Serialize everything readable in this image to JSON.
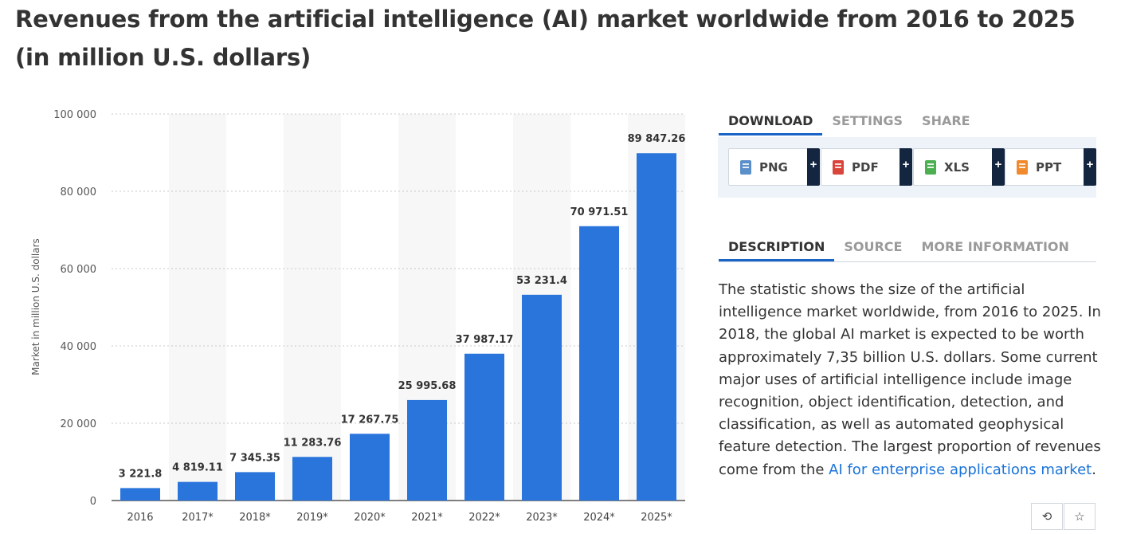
{
  "page": {
    "title": "Revenues from the artificial intelligence (AI) market worldwide from 2016 to 2025 (in million U.S. dollars)"
  },
  "chart_data": {
    "type": "bar",
    "title": "Revenues from the artificial intelligence (AI) market worldwide from 2016 to 2025 (in million U.S. dollars)",
    "xlabel": "",
    "ylabel": "Market in million U.S. dollars",
    "categories": [
      "2016",
      "2017*",
      "2018*",
      "2019*",
      "2020*",
      "2021*",
      "2022*",
      "2023*",
      "2024*",
      "2025*"
    ],
    "values": [
      3221.8,
      4819.11,
      7345.35,
      11283.76,
      17267.75,
      25995.68,
      37987.17,
      53231.4,
      70971.51,
      89847.26
    ],
    "value_labels": [
      "3 221.8",
      "4 819.11",
      "7 345.35",
      "11 283.76",
      "17 267.75",
      "25 995.68",
      "37 987.17",
      "53 231.4",
      "70 971.51",
      "89 847.26"
    ],
    "ylim": [
      0,
      100000
    ],
    "yticks": [
      0,
      20000,
      40000,
      60000,
      80000,
      100000
    ],
    "ytick_labels": [
      "0",
      "20 000",
      "40 000",
      "60 000",
      "80 000",
      "100 000"
    ],
    "grid": true,
    "legend": "none",
    "bar_color": "#2a75dc",
    "band_color": "#f7f7f7"
  },
  "download": {
    "tabs": [
      "DOWNLOAD",
      "SETTINGS",
      "SHARE"
    ],
    "active_tab": 0,
    "buttons": [
      {
        "label": "PNG",
        "icon": "png-file-icon",
        "color": "#5b8fc9"
      },
      {
        "label": "PDF",
        "icon": "pdf-file-icon",
        "color": "#d9443b"
      },
      {
        "label": "XLS",
        "icon": "xls-file-icon",
        "color": "#4caf50"
      },
      {
        "label": "PPT",
        "icon": "ppt-file-icon",
        "color": "#f08a2c"
      }
    ],
    "plus": "+"
  },
  "info": {
    "tabs": [
      "DESCRIPTION",
      "SOURCE",
      "MORE INFORMATION"
    ],
    "active_tab": 0,
    "description": "The statistic shows the size of the artificial intelligence market worldwide, from 2016 to 2025. In 2018, the global AI market is expected to be worth approximately 7,35 billion U.S. dollars. Some current major uses of artificial intelligence include image recognition, object identification, detection, and classification, as well as automated geophysical feature detection. The largest proportion of revenues come from the ",
    "link_text": "AI for enterprise applications market",
    "end": "."
  },
  "actions": {
    "history_icon": "history-icon",
    "favorite_icon": "star-icon",
    "history_glyph": "⟲",
    "favorite_glyph": "☆"
  },
  "colors": {
    "accent": "#1a63c7",
    "text": "#333333"
  }
}
